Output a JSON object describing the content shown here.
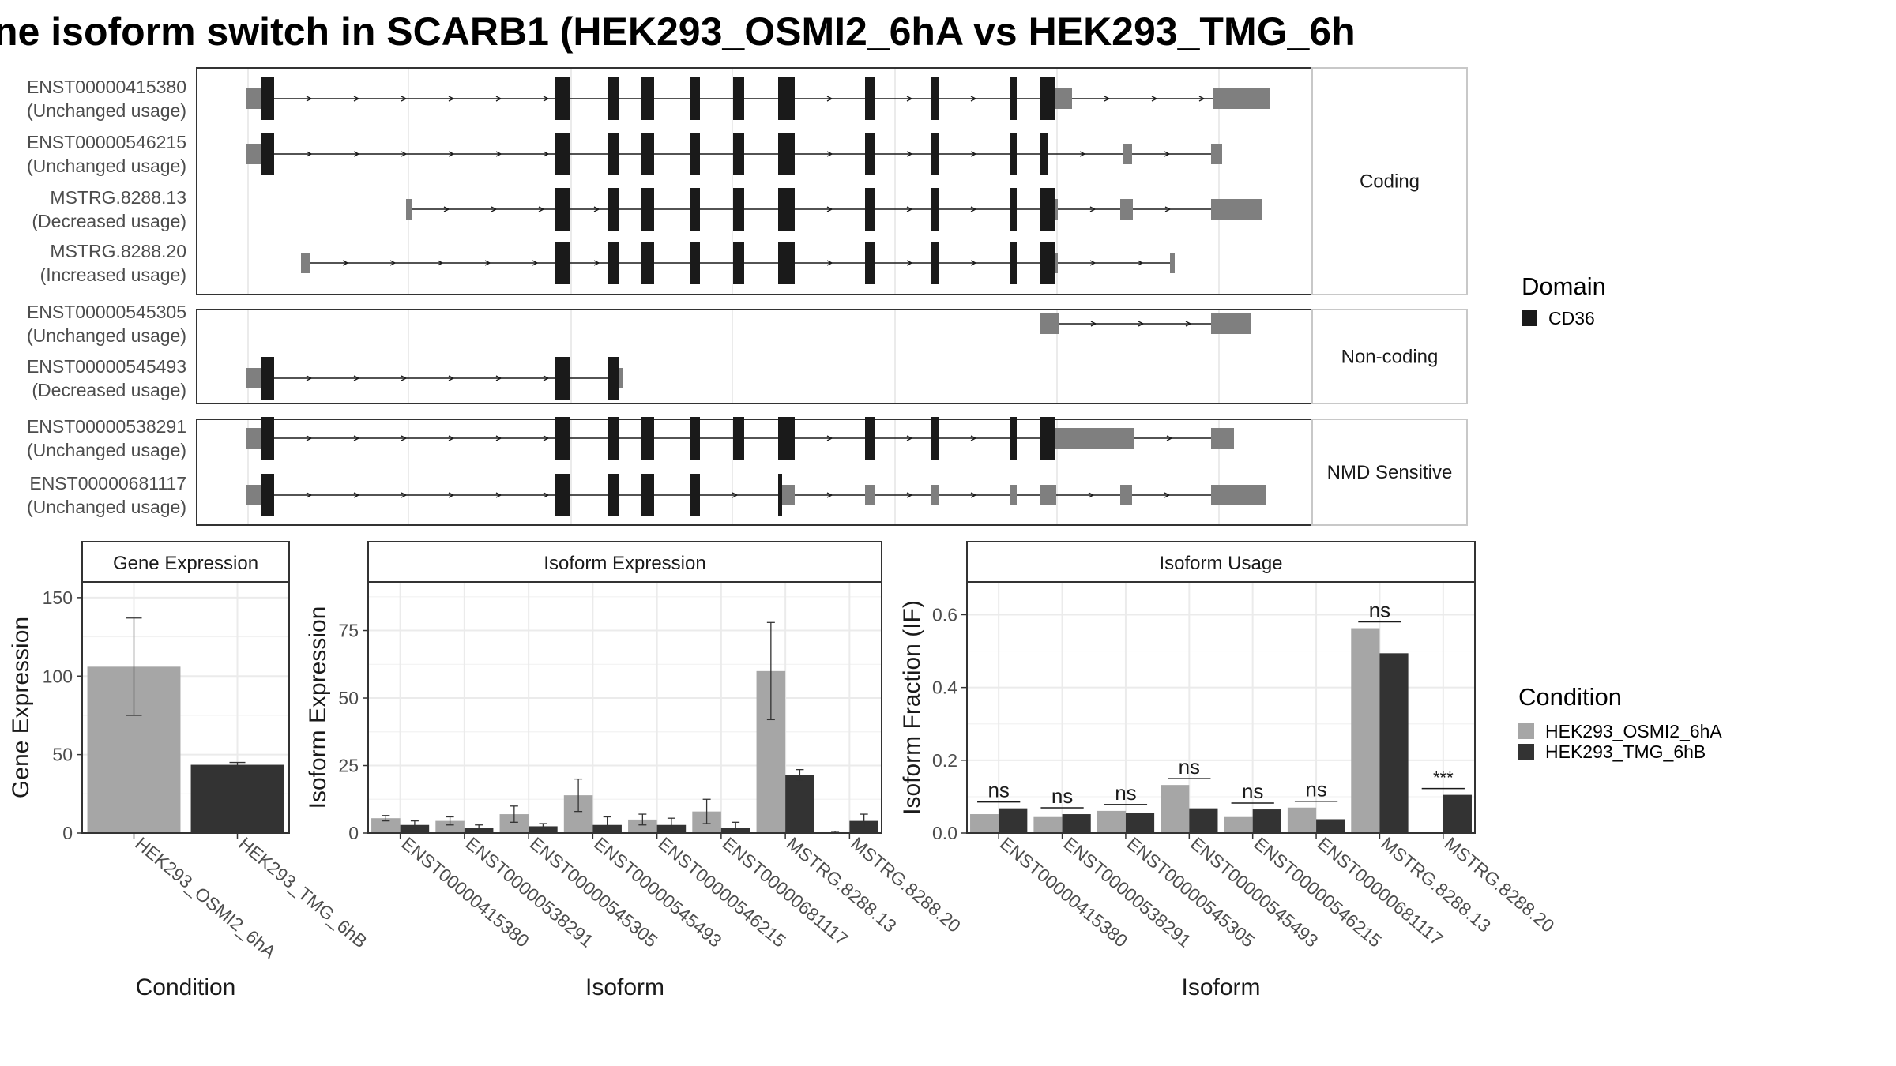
{
  "title": "ne isoform switch in SCARB1 (HEK293_OSMI2_6hA vs HEK293_TMG_6h",
  "colors": {
    "exon_cds": "#1a1a1a",
    "exon_utr": "#7f7f7f",
    "cond_a": "#a6a6a6",
    "cond_b": "#333333",
    "grid": "#ebebeb",
    "panel_border": "#333333"
  },
  "structure": {
    "strips": [
      "Coding",
      "Non-coding",
      "NMD Sensitive"
    ],
    "transcripts": [
      {
        "id": "ENST00000415380",
        "usage": "(Unchanged usage)",
        "group": 0
      },
      {
        "id": "ENST00000546215",
        "usage": "(Unchanged usage)",
        "group": 0
      },
      {
        "id": "MSTRG.8288.13",
        "usage": "(Decreased usage)",
        "group": 0
      },
      {
        "id": "MSTRG.8288.20",
        "usage": "(Increased usage)",
        "group": 0
      },
      {
        "id": "ENST00000545305",
        "usage": "(Unchanged usage)",
        "group": 1
      },
      {
        "id": "ENST00000545493",
        "usage": "(Decreased usage)",
        "group": 1
      },
      {
        "id": "ENST00000538291",
        "usage": "(Unchanged usage)",
        "group": 2
      },
      {
        "id": "ENST00000681117",
        "usage": "(Unchanged usage)",
        "group": 2
      }
    ]
  },
  "legend_domain": {
    "title": "Domain",
    "items": [
      "CD36"
    ]
  },
  "legend_condition": {
    "title": "Condition",
    "items": [
      "HEK293_OSMI2_6hA",
      "HEK293_TMG_6hB"
    ]
  },
  "chart_data": [
    {
      "type": "bar",
      "title": "Gene Expression",
      "xlabel": "Condition",
      "ylabel": "Gene Expression",
      "categories": [
        "HEK293_OSMI2_6hA",
        "HEK293_TMG_6hB"
      ],
      "ylim": [
        0,
        160
      ],
      "yticks": [
        0,
        50,
        100,
        150
      ],
      "values": [
        106,
        43.5
      ],
      "errors": [
        [
          75,
          137
        ],
        [
          42,
          45
        ]
      ]
    },
    {
      "type": "bar",
      "title": "Isoform Expression",
      "xlabel": "Isoform",
      "ylabel": "Isoform Expression",
      "categories": [
        "ENST00000415380",
        "ENST00000538291",
        "ENST00000545305",
        "ENST00000545493",
        "ENST00000546215",
        "ENST00000681117",
        "MSTRG.8288.13",
        "MSTRG.8288.20"
      ],
      "ylim": [
        0,
        93
      ],
      "yticks": [
        0,
        25,
        50,
        75
      ],
      "series": [
        {
          "name": "HEK293_OSMI2_6hA",
          "values": [
            5.5,
            4.5,
            7,
            14,
            5,
            8,
            60,
            0.3
          ],
          "errors": [
            [
              4.5,
              6.5
            ],
            [
              3,
              6
            ],
            [
              4,
              10
            ],
            [
              8,
              20
            ],
            [
              3,
              7
            ],
            [
              3.5,
              12.5
            ],
            [
              42,
              78
            ],
            [
              0,
              0.6
            ]
          ]
        },
        {
          "name": "HEK293_TMG_6hB",
          "values": [
            3,
            2,
            2.5,
            3,
            3,
            2,
            21.5,
            4.5
          ],
          "errors": [
            [
              1.5,
              4.5
            ],
            [
              1,
              3
            ],
            [
              1.5,
              3.5
            ],
            [
              0.5,
              6
            ],
            [
              0.5,
              5.5
            ],
            [
              0.5,
              4
            ],
            [
              19.5,
              23.5
            ],
            [
              2,
              7
            ]
          ]
        }
      ]
    },
    {
      "type": "bar",
      "title": "Isoform Usage",
      "xlabel": "Isoform",
      "ylabel": "Isoform Fraction (IF)",
      "categories": [
        "ENST00000415380",
        "ENST00000538291",
        "ENST00000545305",
        "ENST00000545493",
        "ENST00000546215",
        "ENST00000681117",
        "MSTRG.8288.13",
        "MSTRG.8288.20"
      ],
      "ylim": [
        0,
        0.69
      ],
      "yticks": [
        0.0,
        0.2,
        0.4,
        0.6
      ],
      "series": [
        {
          "name": "HEK293_OSMI2_6hA",
          "values": [
            0.052,
            0.044,
            0.061,
            0.132,
            0.044,
            0.07,
            0.563,
            0.0
          ]
        },
        {
          "name": "HEK293_TMG_6hB",
          "values": [
            0.068,
            0.052,
            0.055,
            0.068,
            0.065,
            0.038,
            0.494,
            0.105
          ]
        }
      ],
      "annotations": [
        "ns",
        "ns",
        "ns",
        "ns",
        "ns",
        "ns",
        "ns",
        "***"
      ]
    }
  ]
}
